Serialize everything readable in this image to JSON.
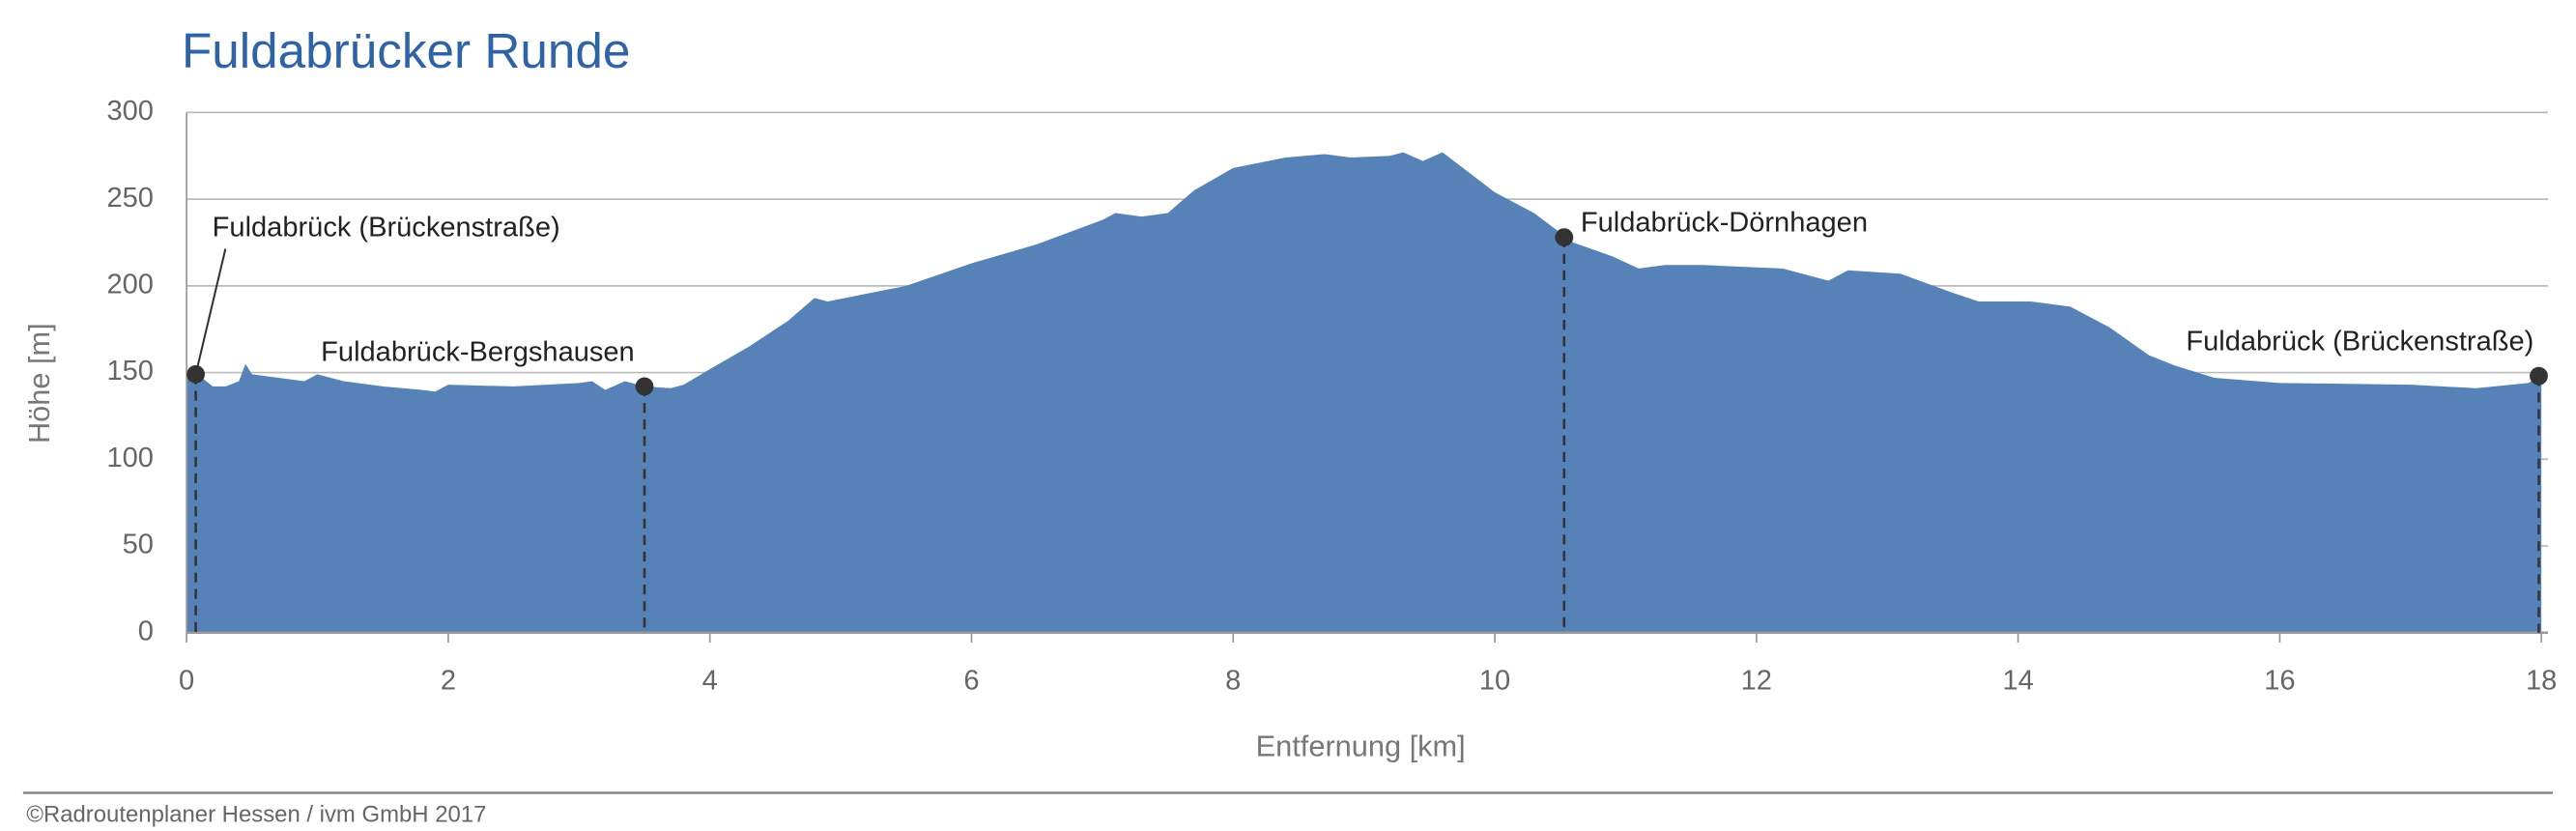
{
  "chart_data": {
    "type": "area",
    "title": "Fuldabrücker Runde",
    "xlabel": "Entfernung [km]",
    "ylabel": "Höhe [m]",
    "color": "#5682b8",
    "grid": true,
    "xlim": [
      0,
      18.05
    ],
    "ylim": [
      0,
      300
    ],
    "xticks": [
      0,
      2,
      4,
      6,
      8,
      10,
      12,
      14,
      16,
      18
    ],
    "yticks": [
      0,
      50,
      100,
      150,
      200,
      250,
      300
    ],
    "x": [
      0,
      0.1,
      0.2,
      0.3,
      0.4,
      0.45,
      0.5,
      0.9,
      1.0,
      1.2,
      1.5,
      1.8,
      1.9,
      2.0,
      2.5,
      3.0,
      3.1,
      3.2,
      3.35,
      3.5,
      3.7,
      3.8,
      4.0,
      4.3,
      4.6,
      4.8,
      4.9,
      5.5,
      6.0,
      6.5,
      7.0,
      7.1,
      7.3,
      7.5,
      7.7,
      8.0,
      8.4,
      8.7,
      8.9,
      9.2,
      9.3,
      9.45,
      9.6,
      10.0,
      10.3,
      10.6,
      10.9,
      11.1,
      11.3,
      11.6,
      12.2,
      12.55,
      12.7,
      13.1,
      13.5,
      13.7,
      14.1,
      14.4,
      14.7,
      15.0,
      15.2,
      15.5,
      16.0,
      17.0,
      17.5,
      17.9,
      18.0
    ],
    "y": [
      150,
      148,
      142,
      142,
      145,
      155,
      149,
      145,
      149,
      145,
      142,
      140,
      139,
      143,
      142,
      144,
      145,
      140,
      145,
      142,
      141,
      143,
      152,
      165,
      180,
      193,
      191,
      200,
      213,
      224,
      238,
      242,
      240,
      242,
      255,
      268,
      274,
      276,
      274,
      275,
      277,
      272,
      277,
      254,
      242,
      225,
      217,
      210,
      212,
      212,
      210,
      203,
      209,
      207,
      196,
      191,
      191,
      188,
      176,
      160,
      154,
      147,
      144,
      143,
      141,
      144,
      148
    ],
    "annotations": [
      {
        "label": "Fuldabrück (Brückenstraße)",
        "x": 0.07,
        "y": 149
      },
      {
        "label": "Fuldabrück-Bergshausen",
        "x": 3.5,
        "y": 142
      },
      {
        "label": "Fuldabrück-Dörnhagen",
        "x": 10.53,
        "y": 228
      },
      {
        "label": "Fuldabrück (Brückenstraße)",
        "x": 17.98,
        "y": 148
      }
    ]
  },
  "footer": "©Radroutenplaner Hessen / ivm GmbH 2017"
}
